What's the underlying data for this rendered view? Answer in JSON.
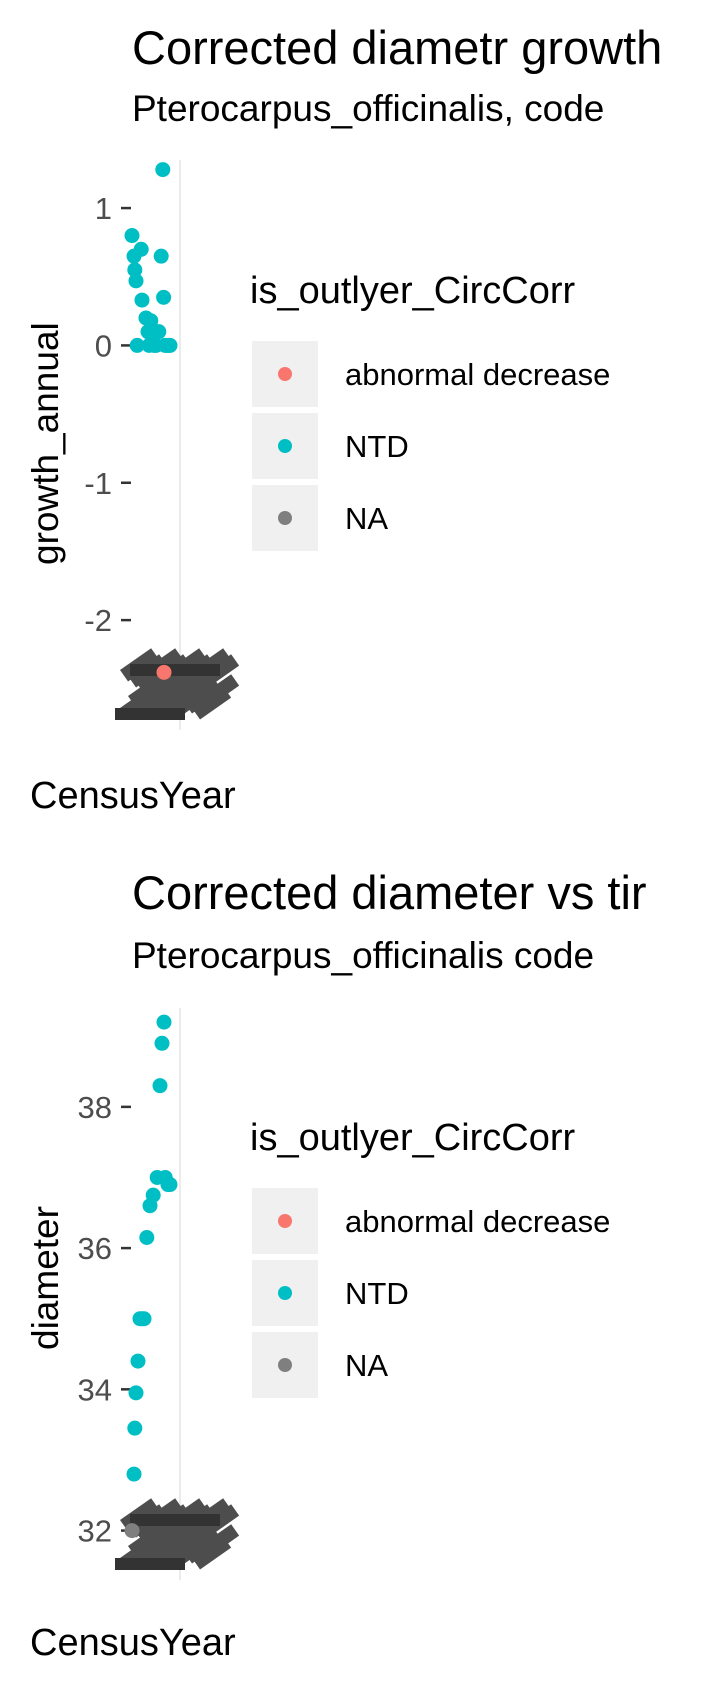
{
  "chart_data": [
    {
      "type": "scatter",
      "title": "Corrected diametr growth",
      "subtitle": "Pterocarpus_officinalis, code",
      "xlabel": "CensusYear",
      "ylabel": "growth_annual",
      "ylim": [
        -2.8,
        1.35
      ],
      "yticks": [
        "1",
        "0",
        "-1",
        "-2"
      ],
      "ytick_values": [
        1,
        0,
        -1,
        -2
      ],
      "grid": true,
      "legend": {
        "title": "is_outlyer_CircCorr",
        "placement": "right",
        "entries": [
          {
            "label": "abnormal decrease",
            "color": "#F8766D"
          },
          {
            "label": "NTD",
            "color": "#00BFC4"
          },
          {
            "label": "NA",
            "color": "#7F7F7F"
          }
        ]
      },
      "series": [
        {
          "name": "abnormal decrease",
          "color": "#F8766D",
          "x": [
            0.85
          ],
          "y": [
            -2.38
          ]
        },
        {
          "name": "NTD",
          "color": "#00BFC4",
          "x": [
            0.05,
            0.1,
            0.12,
            0.15,
            0.18,
            0.28,
            0.3,
            0.4,
            0.45,
            0.48,
            0.52,
            0.55,
            0.6,
            0.65,
            0.72,
            0.78,
            0.82,
            0.84,
            0.88,
            0.92,
            0.97,
            1.0
          ],
          "y": [
            0.8,
            0.65,
            0.55,
            0.47,
            0.0,
            0.7,
            0.33,
            0.2,
            0.1,
            0.0,
            0.18,
            0.07,
            0.0,
            0.0,
            0.1,
            0.65,
            1.28,
            0.35,
            0.0,
            0.0,
            0.0,
            0.0
          ]
        }
      ]
    },
    {
      "type": "scatter",
      "title": "Corrected diameter vs tir",
      "subtitle": "Pterocarpus_officinalis code",
      "xlabel": "CensusYear",
      "ylabel": "diameter",
      "ylim": [
        31.3,
        39.4
      ],
      "yticks": [
        "38",
        "36",
        "34",
        "32"
      ],
      "ytick_values": [
        38,
        36,
        34,
        32
      ],
      "grid": true,
      "legend": {
        "title": "is_outlyer_CircCorr",
        "placement": "right",
        "entries": [
          {
            "label": "abnormal decrease",
            "color": "#F8766D"
          },
          {
            "label": "NTD",
            "color": "#00BFC4"
          },
          {
            "label": "NA",
            "color": "#7F7F7F"
          }
        ]
      },
      "series": [
        {
          "name": "NTD",
          "color": "#00BFC4",
          "x": [
            0.1,
            0.12,
            0.15,
            0.2,
            0.25,
            0.3,
            0.35,
            0.42,
            0.5,
            0.58,
            0.68,
            0.75,
            0.8,
            0.85,
            0.88,
            0.95,
            1.0
          ],
          "y": [
            32.8,
            33.45,
            33.95,
            34.4,
            35.0,
            35.0,
            35.0,
            36.15,
            36.6,
            36.75,
            37.0,
            38.3,
            38.9,
            39.2,
            37.0,
            36.9,
            36.9
          ]
        },
        {
          "name": "NA",
          "color": "#7F7F7F",
          "x": [
            0.05
          ],
          "y": [
            32.0
          ]
        }
      ]
    }
  ]
}
